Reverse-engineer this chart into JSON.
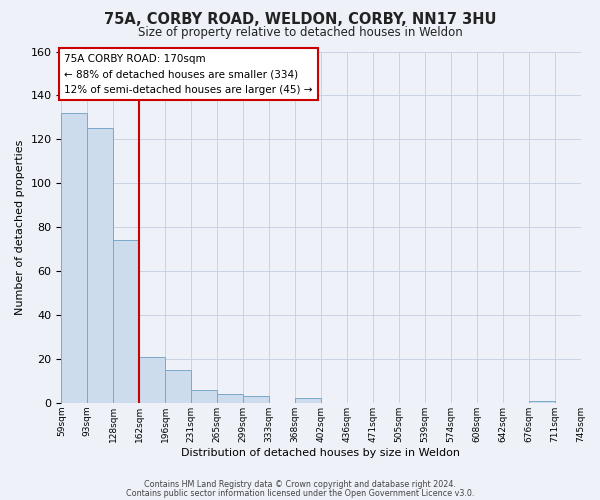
{
  "title": "75A, CORBY ROAD, WELDON, CORBY, NN17 3HU",
  "subtitle": "Size of property relative to detached houses in Weldon",
  "xlabel": "Distribution of detached houses by size in Weldon",
  "ylabel": "Number of detached properties",
  "bar_heights": [
    132,
    125,
    74,
    21,
    15,
    6,
    4,
    3,
    0,
    2,
    0,
    0,
    0,
    0,
    0,
    0,
    0,
    0,
    1,
    0
  ],
  "bin_labels": [
    "59sqm",
    "93sqm",
    "128sqm",
    "162sqm",
    "196sqm",
    "231sqm",
    "265sqm",
    "299sqm",
    "333sqm",
    "368sqm",
    "402sqm",
    "436sqm",
    "471sqm",
    "505sqm",
    "539sqm",
    "574sqm",
    "608sqm",
    "642sqm",
    "676sqm",
    "711sqm",
    "745sqm"
  ],
  "bar_color": "#ccdcec",
  "bar_edge_color": "#7aa8cc",
  "vline_color": "#cc0000",
  "vline_x": 3.0,
  "annotation_text_line1": "75A CORBY ROAD: 170sqm",
  "annotation_text_line2": "← 88% of detached houses are smaller (334)",
  "annotation_text_line3": "12% of semi-detached houses are larger (45) →",
  "annotation_box_facecolor": "#ffffff",
  "annotation_box_edgecolor": "#cc0000",
  "ylim": [
    0,
    160
  ],
  "yticks": [
    0,
    20,
    40,
    60,
    80,
    100,
    120,
    140,
    160
  ],
  "background_color": "#eef2f8",
  "grid_color": "#c4cedd",
  "footer_line1": "Contains HM Land Registry data © Crown copyright and database right 2024.",
  "footer_line2": "Contains public sector information licensed under the Open Government Licence v3.0."
}
